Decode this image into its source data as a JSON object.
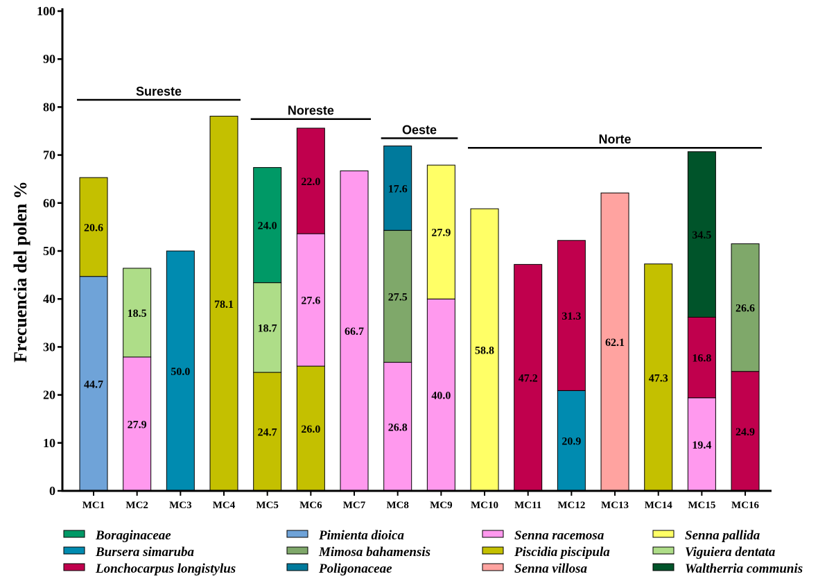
{
  "chart_data": {
    "type": "bar",
    "stacked": true,
    "ylabel": "Frecuencia del polen  %",
    "ylim": [
      0,
      100
    ],
    "yticks": [
      0,
      10,
      20,
      30,
      40,
      50,
      60,
      70,
      80,
      90,
      100
    ],
    "grid": false,
    "legend_position": "bottom",
    "categories": [
      "MC1",
      "MC2",
      "MC3",
      "MC4",
      "MC5",
      "MC6",
      "MC7",
      "MC8",
      "MC9",
      "MC10",
      "MC11",
      "MC12",
      "MC13",
      "MC14",
      "MC15",
      "MC16"
    ],
    "taxa": [
      {
        "name": "Boraginaceae",
        "color": "#009966"
      },
      {
        "name": "Bursera simaruba",
        "color": "#008BB0"
      },
      {
        "name": "Lonchocarpus longistylus",
        "color": "#C0004D"
      },
      {
        "name": "Pimienta dioica",
        "color": "#6FA3D8"
      },
      {
        "name": "Mimosa bahamensis",
        "color": "#7FA86A"
      },
      {
        "name": "Poligonaceae",
        "color": "#007A9C"
      },
      {
        "name": "Senna racemosa",
        "color": "#FF99EE"
      },
      {
        "name": "Piscidia piscipula",
        "color": "#C4C000"
      },
      {
        "name": "Senna villosa",
        "color": "#FFA3A0"
      },
      {
        "name": "Senna pallida",
        "color": "#FFFF66"
      },
      {
        "name": "Viguiera dentata",
        "color": "#AEDD88"
      },
      {
        "name": "Waltherria communis",
        "color": "#00542A"
      }
    ],
    "bars": [
      {
        "category": "MC1",
        "segments": [
          {
            "taxon": "Pimienta dioica",
            "value": 44.7,
            "label": "44.7"
          },
          {
            "taxon": "Piscidia piscipula",
            "value": 20.6,
            "label": "20.6"
          }
        ]
      },
      {
        "category": "MC2",
        "segments": [
          {
            "taxon": "Senna racemosa",
            "value": 27.9,
            "label": "27.9"
          },
          {
            "taxon": "Viguiera dentata",
            "value": 18.5,
            "label": "18.5"
          }
        ]
      },
      {
        "category": "MC3",
        "segments": [
          {
            "taxon": "Bursera simaruba",
            "value": 50.0,
            "label": "50.0"
          }
        ]
      },
      {
        "category": "MC4",
        "segments": [
          {
            "taxon": "Piscidia piscipula",
            "value": 78.1,
            "label": "78.1"
          }
        ]
      },
      {
        "category": "MC5",
        "segments": [
          {
            "taxon": "Piscidia piscipula",
            "value": 24.7,
            "label": "24.7"
          },
          {
            "taxon": "Viguiera dentata",
            "value": 18.7,
            "label": "18.7"
          },
          {
            "taxon": "Boraginaceae",
            "value": 24.0,
            "label": "24.0"
          }
        ]
      },
      {
        "category": "MC6",
        "segments": [
          {
            "taxon": "Piscidia piscipula",
            "value": 26.0,
            "label": "26.0"
          },
          {
            "taxon": "Senna racemosa",
            "value": 27.6,
            "label": "27.6"
          },
          {
            "taxon": "Lonchocarpus longistylus",
            "value": 22.0,
            "label": "22.0"
          }
        ]
      },
      {
        "category": "MC7",
        "segments": [
          {
            "taxon": "Senna racemosa",
            "value": 66.7,
            "label": "66.7"
          }
        ]
      },
      {
        "category": "MC8",
        "segments": [
          {
            "taxon": "Senna racemosa",
            "value": 26.8,
            "label": "26.8"
          },
          {
            "taxon": "Mimosa bahamensis",
            "value": 27.5,
            "label": "27.5"
          },
          {
            "taxon": "Poligonaceae",
            "value": 17.6,
            "label": "17.6"
          }
        ]
      },
      {
        "category": "MC9",
        "segments": [
          {
            "taxon": "Senna racemosa",
            "value": 40.0,
            "label": "40.0"
          },
          {
            "taxon": "Senna pallida",
            "value": 27.9,
            "label": "27.9"
          }
        ]
      },
      {
        "category": "MC10",
        "segments": [
          {
            "taxon": "Senna pallida",
            "value": 58.8,
            "label": "58.8"
          }
        ]
      },
      {
        "category": "MC11",
        "segments": [
          {
            "taxon": "Lonchocarpus longistylus",
            "value": 47.2,
            "label": "47.2"
          }
        ]
      },
      {
        "category": "MC12",
        "segments": [
          {
            "taxon": "Bursera simaruba",
            "value": 20.9,
            "label": "20.9"
          },
          {
            "taxon": "Lonchocarpus longistylus",
            "value": 31.3,
            "label": "31.3"
          }
        ]
      },
      {
        "category": "MC13",
        "segments": [
          {
            "taxon": "Senna villosa",
            "value": 62.1,
            "label": "62.1"
          }
        ]
      },
      {
        "category": "MC14",
        "segments": [
          {
            "taxon": "Piscidia piscipula",
            "value": 47.3,
            "label": "47.3"
          }
        ]
      },
      {
        "category": "MC15",
        "segments": [
          {
            "taxon": "Senna racemosa",
            "value": 19.4,
            "label": "19.4"
          },
          {
            "taxon": "Lonchocarpus longistylus",
            "value": 16.8,
            "label": "16.8"
          },
          {
            "taxon": "Waltherria communis",
            "value": 34.5,
            "label": "34.5"
          }
        ]
      },
      {
        "category": "MC16",
        "segments": [
          {
            "taxon": "Lonchocarpus longistylus",
            "value": 24.9,
            "label": "24.9"
          },
          {
            "taxon": "Mimosa bahamensis",
            "value": 26.6,
            "label": "26.6"
          }
        ]
      }
    ],
    "regions": [
      {
        "label": "Sureste",
        "from": "MC1",
        "to": "MC4",
        "level": 81.5
      },
      {
        "label": "Noreste",
        "from": "MC5",
        "to": "MC7",
        "level": 77.5
      },
      {
        "label": "Oeste",
        "from": "MC8",
        "to": "MC9",
        "level": 73.5
      },
      {
        "label": "Norte",
        "from": "MC10",
        "to": "MC16",
        "level": 71.5
      }
    ]
  }
}
